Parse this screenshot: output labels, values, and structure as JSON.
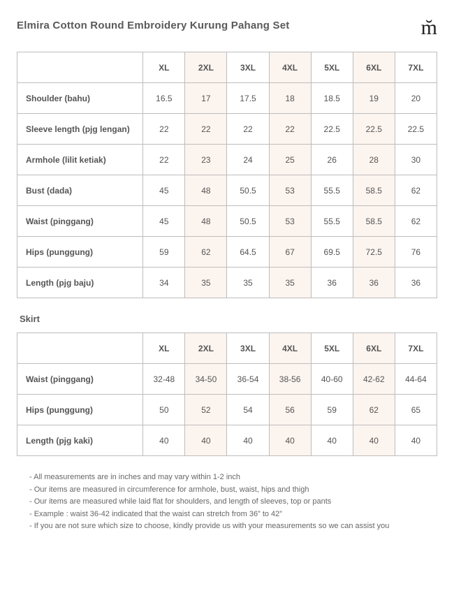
{
  "title": "Elmira Cotton Round Embroidery Kurung Pahang Set",
  "logo_glyph": "m̆",
  "sizes": [
    "XL",
    "2XL",
    "3XL",
    "4XL",
    "5XL",
    "6XL",
    "7XL"
  ],
  "stripe_color": "#fcf4ef",
  "border_color": "#bdbdbd",
  "table1": {
    "rows": [
      {
        "label": "Shoulder (bahu)",
        "v": [
          "16.5",
          "17",
          "17.5",
          "18",
          "18.5",
          "19",
          "20"
        ]
      },
      {
        "label": "Sleeve length (pjg lengan)",
        "v": [
          "22",
          "22",
          "22",
          "22",
          "22.5",
          "22.5",
          "22.5"
        ]
      },
      {
        "label": "Armhole (lilit ketiak)",
        "v": [
          "22",
          "23",
          "24",
          "25",
          "26",
          "28",
          "30"
        ]
      },
      {
        "label": "Bust (dada)",
        "v": [
          "45",
          "48",
          "50.5",
          "53",
          "55.5",
          "58.5",
          "62"
        ]
      },
      {
        "label": "Waist (pinggang)",
        "v": [
          "45",
          "48",
          "50.5",
          "53",
          "55.5",
          "58.5",
          "62"
        ]
      },
      {
        "label": "Hips (punggung)",
        "v": [
          "59",
          "62",
          "64.5",
          "67",
          "69.5",
          "72.5",
          "76"
        ]
      },
      {
        "label": "Length (pjg baju)",
        "v": [
          "34",
          "35",
          "35",
          "35",
          "36",
          "36",
          "36"
        ]
      }
    ]
  },
  "section2_label": "Skirt",
  "table2": {
    "rows": [
      {
        "label": "Waist (pinggang)",
        "v": [
          "32-48",
          "34-50",
          "36-54",
          "38-56",
          "40-60",
          "42-62",
          "44-64"
        ]
      },
      {
        "label": "Hips (punggung)",
        "v": [
          "50",
          "52",
          "54",
          "56",
          "59",
          "62",
          "65"
        ]
      },
      {
        "label": "Length (pjg kaki)",
        "v": [
          "40",
          "40",
          "40",
          "40",
          "40",
          "40",
          "40"
        ]
      }
    ]
  },
  "notes": [
    "- All measurements are in inches and may vary within 1-2 inch",
    "- Our items are measured in circumference for armhole, bust, waist, hips and thigh",
    "- Our items are measured while laid flat for shoulders, and length of sleeves, top or pants",
    "- Example : waist 36-42 indicated that the waist can stretch from 36” to 42”",
    "- If you are not sure which size to choose, kindly provide us with your measurements so we can assist you"
  ]
}
